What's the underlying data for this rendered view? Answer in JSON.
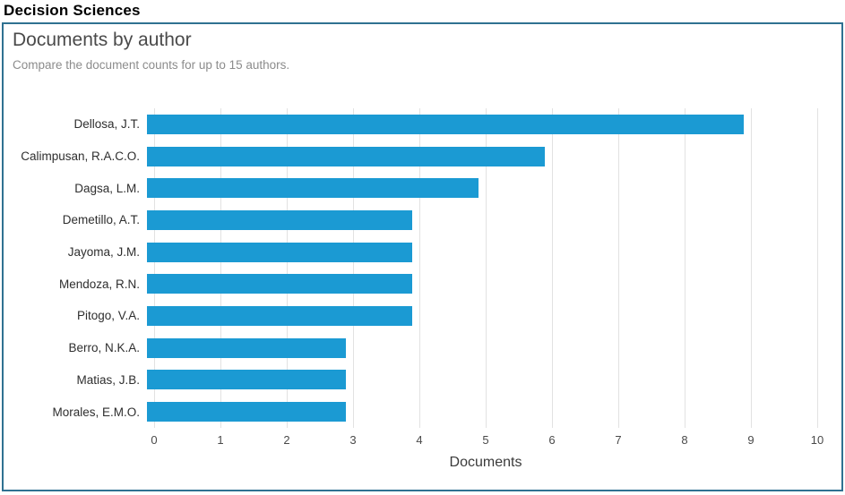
{
  "page": {
    "header": "Decision Sciences"
  },
  "panel": {
    "title": "Documents by author",
    "subtitle": "Compare the document counts for up to 15 authors."
  },
  "chart_data": {
    "type": "bar",
    "orientation": "horizontal",
    "title": "Documents by author",
    "categories": [
      "Dellosa, J.T.",
      "Calimpusan, R.A.C.O.",
      "Dagsa, L.M.",
      "Demetillo, A.T.",
      "Jayoma, J.M.",
      "Mendoza, R.N.",
      "Pitogo, V.A.",
      "Berro, N.K.A.",
      "Matias, J.B.",
      "Morales, E.M.O."
    ],
    "values": [
      9,
      6,
      5,
      4,
      4,
      4,
      4,
      3,
      3,
      3
    ],
    "xlabel": "Documents",
    "ylabel": "",
    "xlim": [
      0,
      10
    ],
    "xticks": [
      0,
      1,
      2,
      3,
      4,
      5,
      6,
      7,
      8,
      9,
      10
    ],
    "grid": true,
    "legend": false,
    "bar_color": "#1b9ad3"
  },
  "colors": {
    "panel_border": "#2f7191",
    "gridline": "#e2e2e2",
    "bar": "#1b9ad3",
    "title_text": "#4a4a4a",
    "subtitle_text": "#8c8c8c",
    "tick_text": "#4a4a4a",
    "category_text": "#2e2e2e"
  }
}
